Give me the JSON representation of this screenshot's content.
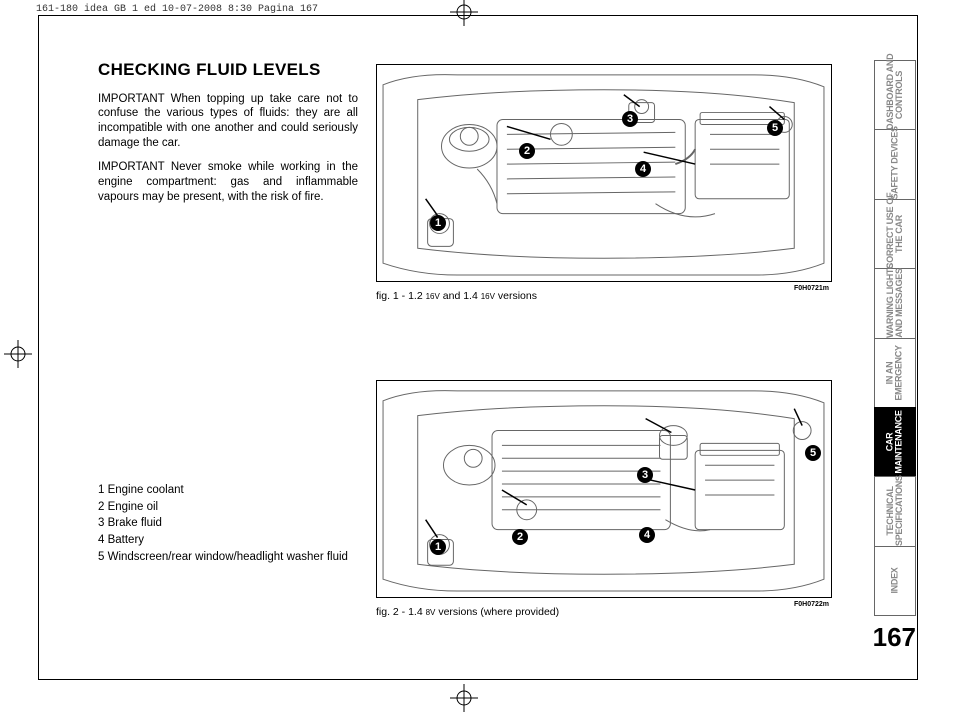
{
  "header": "161-180 idea GB 1 ed  10-07-2008  8:30  Pagina 167",
  "heading": "CHECKING FLUID LEVELS",
  "para1": "IMPORTANT When topping up take care not to confuse the various types of fluids: they are all incompatible with one another and could seriously damage the car.",
  "para2": "IMPORTANT Never smoke while working in the engine compartment: gas and inflammable vapours may be present, with the risk of fire.",
  "legend": {
    "i1": "1 Engine coolant",
    "i2": "2 Engine oil",
    "i3": "3 Brake fluid",
    "i4": "4 Battery",
    "i5": "5 Windscreen/rear window/headlight washer fluid"
  },
  "figures": {
    "f1": {
      "caption_pre": "fig. 1 - 1.2 ",
      "caption_mid": "16V",
      "caption_mid2": " and 1.4 ",
      "caption_suf": "16V",
      "caption_end": " versions",
      "code": "F0H0721m"
    },
    "f2": {
      "caption_pre": "fig. 2 - 1.4 ",
      "caption_mid": "8V",
      "caption_end": " versions (where provided)",
      "code": "F0H0722m"
    }
  },
  "tabs": {
    "t1": "DASHBOARD AND CONTROLS",
    "t2": "SAFETY DEVICES",
    "t3": "CORRECT USE OF THE CAR",
    "t4": "WARNING LIGHTS AND MESSAGES",
    "t5": "IN AN EMERGENCY",
    "t6": "CAR MAINTENANCE",
    "t7": "TECHNICAL SPECIFICATIONS",
    "t8": "INDEX"
  },
  "page_num": "167",
  "callouts": [
    "1",
    "2",
    "3",
    "4",
    "5"
  ],
  "colors": {
    "line": "#666666",
    "ink": "#000000",
    "muted": "#888888"
  }
}
